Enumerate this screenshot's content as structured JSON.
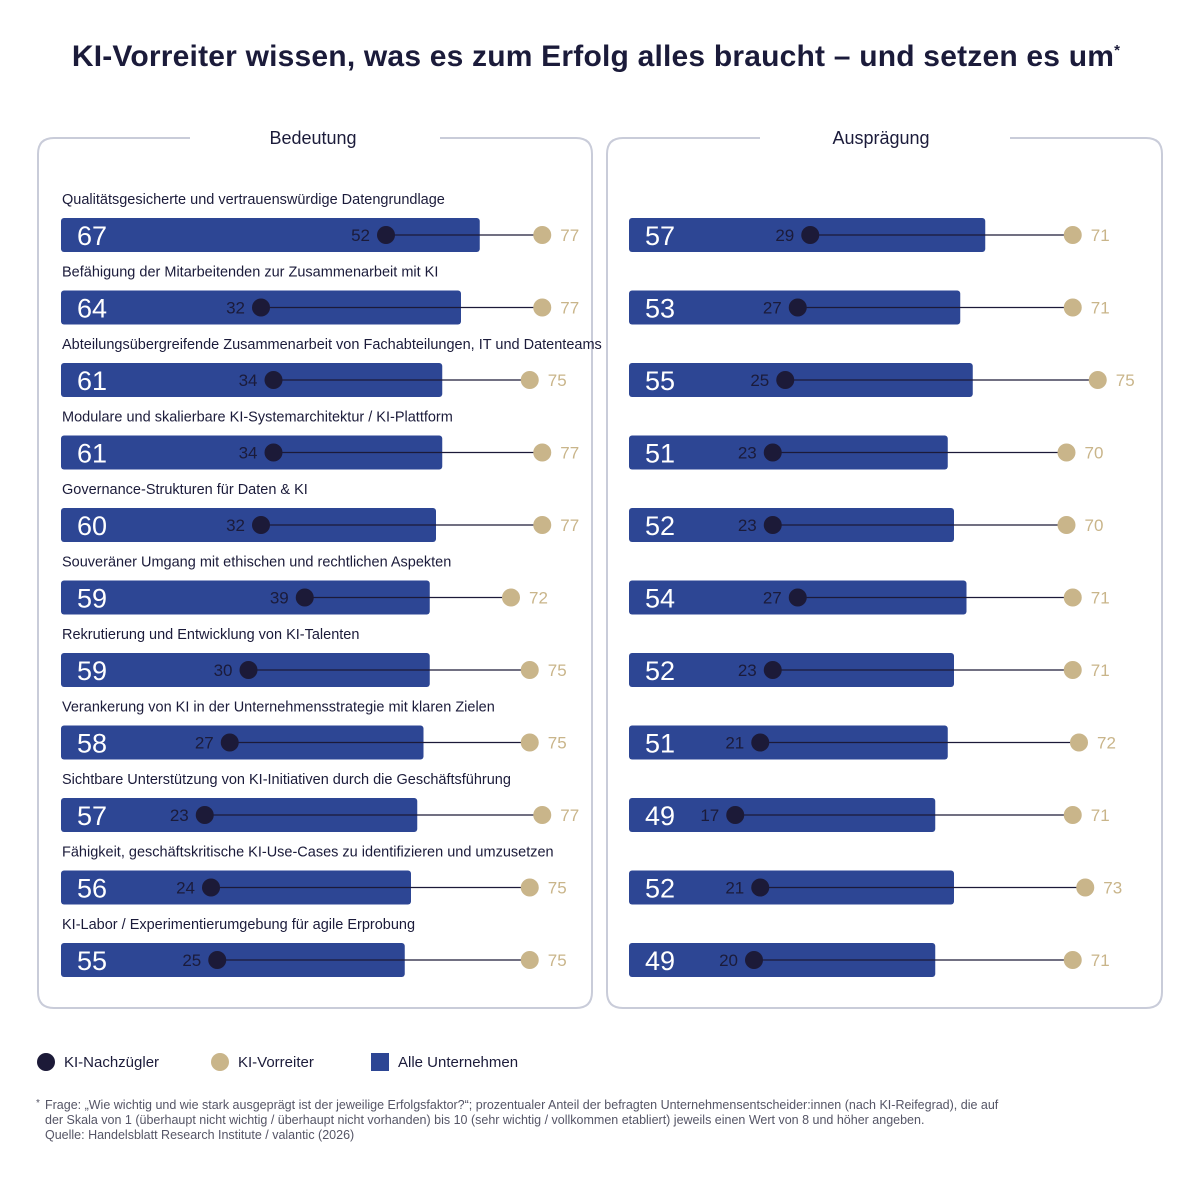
{
  "title": "KI-Vorreiter wissen, was es zum Erfolg alles braucht – und setzen es um",
  "title_mark": "*",
  "colors": {
    "bar": "#2d4694",
    "nachzuegler": "#1c1a38",
    "vorreiter": "#c9b58a",
    "frame": "#c9ccd9",
    "text": "#1b1b3a"
  },
  "legend": {
    "nachzuegler": "KI-Nachzügler",
    "vorreiter": "KI-Vorreiter",
    "alle": "Alle Unternehmen"
  },
  "footnote": {
    "mark": "*",
    "line1": "Frage: „Wie wichtig und wie stark ausgeprägt ist der jeweilige Erfolgsfaktor?“; prozentualer Anteil der befragten Unternehmensentscheider:innen (nach KI-Reifegrad), die auf",
    "line2": "der Skala von 1 (überhaupt nicht wichtig / überhaupt nicht vorhanden) bis 10 (sehr wichtig / vollkommen etabliert) jeweils einen Wert von 8 und höher angeben.",
    "line3": "Quelle: Handelsblatt Research Institute / valantic (2026)"
  },
  "chart_data": {
    "type": "bar",
    "subtype": "bar-with-dumbbell",
    "unit": "%",
    "categories": [
      "Qualitätsgesicherte und vertrauenswürdige Datengrundlage",
      "Befähigung der Mitarbeitenden zur Zusammenarbeit mit KI",
      "Abteilungsübergreifende Zusammenarbeit von Fachabteilungen, IT und Datenteams",
      "Modulare und skalierbare KI-Systemarchitektur / KI-Plattform",
      "Governance-Strukturen für Daten & KI",
      "Souveräner Umgang mit ethischen und rechtlichen Aspekten",
      "Rekrutierung und Entwicklung von KI-Talenten",
      "Verankerung von KI in der Unternehmensstrategie mit klaren Zielen",
      "Sichtbare Unterstützung von KI-Initiativen durch die Geschäftsführung",
      "Fähigkeit, geschäftskritische KI-Use-Cases zu identifizieren und umzusetzen",
      "KI-Labor / Experimentierumgebung für agile Erprobung"
    ],
    "panels": [
      {
        "title": "Bedeutung",
        "series": [
          {
            "name": "Alle Unternehmen",
            "values": [
              67,
              64,
              61,
              61,
              60,
              59,
              59,
              58,
              57,
              56,
              55
            ]
          },
          {
            "name": "KI-Nachzügler",
            "values": [
              52,
              32,
              34,
              34,
              32,
              39,
              30,
              27,
              23,
              24,
              25
            ]
          },
          {
            "name": "KI-Vorreiter",
            "values": [
              77,
              77,
              75,
              77,
              77,
              72,
              75,
              75,
              77,
              75,
              75
            ]
          }
        ]
      },
      {
        "title": "Ausprägung",
        "series": [
          {
            "name": "Alle Unternehmen",
            "values": [
              57,
              53,
              55,
              51,
              52,
              54,
              52,
              51,
              49,
              52,
              49
            ]
          },
          {
            "name": "KI-Nachzügler",
            "values": [
              29,
              27,
              25,
              23,
              23,
              27,
              23,
              21,
              17,
              21,
              20
            ]
          },
          {
            "name": "KI-Vorreiter",
            "values": [
              71,
              71,
              75,
              70,
              70,
              71,
              71,
              72,
              71,
              73,
              71
            ]
          }
        ]
      }
    ]
  }
}
